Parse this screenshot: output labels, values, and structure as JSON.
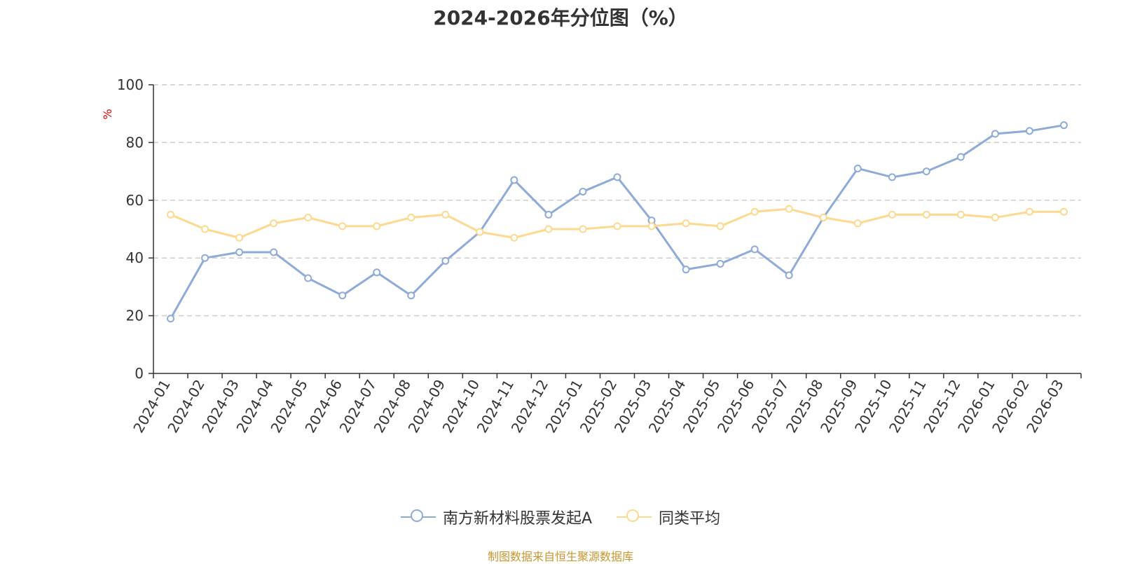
{
  "chart_data": {
    "type": "line",
    "title": "2024-2026年分位图（%）",
    "ylabel": "%",
    "ylim": [
      0,
      100
    ],
    "yticks": [
      0,
      20,
      40,
      60,
      80,
      100
    ],
    "grid": true,
    "legend_position": "bottom",
    "categories": [
      "2024-01",
      "2024-02",
      "2024-03",
      "2024-04",
      "2024-05",
      "2024-06",
      "2024-07",
      "2024-08",
      "2024-09",
      "2024-10",
      "2024-11",
      "2024-12",
      "2025-01",
      "2025-02",
      "2025-03",
      "2025-04",
      "2025-05",
      "2025-06",
      "2025-07",
      "2025-08",
      "2025-09",
      "2025-10",
      "2025-11",
      "2025-12",
      "2026-01",
      "2026-02",
      "2026-03"
    ],
    "series": [
      {
        "name": "南方新材料股票发起A",
        "color": "#8eabd8",
        "values": [
          19,
          40,
          42,
          42,
          33,
          27,
          35,
          27,
          39,
          49,
          67,
          55,
          63,
          68,
          53,
          36,
          38,
          43,
          34,
          54,
          71,
          68,
          70,
          75,
          83,
          84,
          86
        ]
      },
      {
        "name": "同类平均",
        "color": "#fdd98f",
        "values": [
          55,
          50,
          47,
          52,
          54,
          51,
          51,
          54,
          55,
          49,
          47,
          50,
          50,
          51,
          51,
          52,
          51,
          56,
          57,
          54,
          52,
          55,
          55,
          55,
          54,
          56,
          56
        ]
      }
    ]
  },
  "source": "制图数据来自恒生聚源数据库",
  "colors": {
    "axis": "#333333",
    "grid": "#cccccc",
    "unit_label": "#e00000",
    "source": "#c8962e"
  }
}
